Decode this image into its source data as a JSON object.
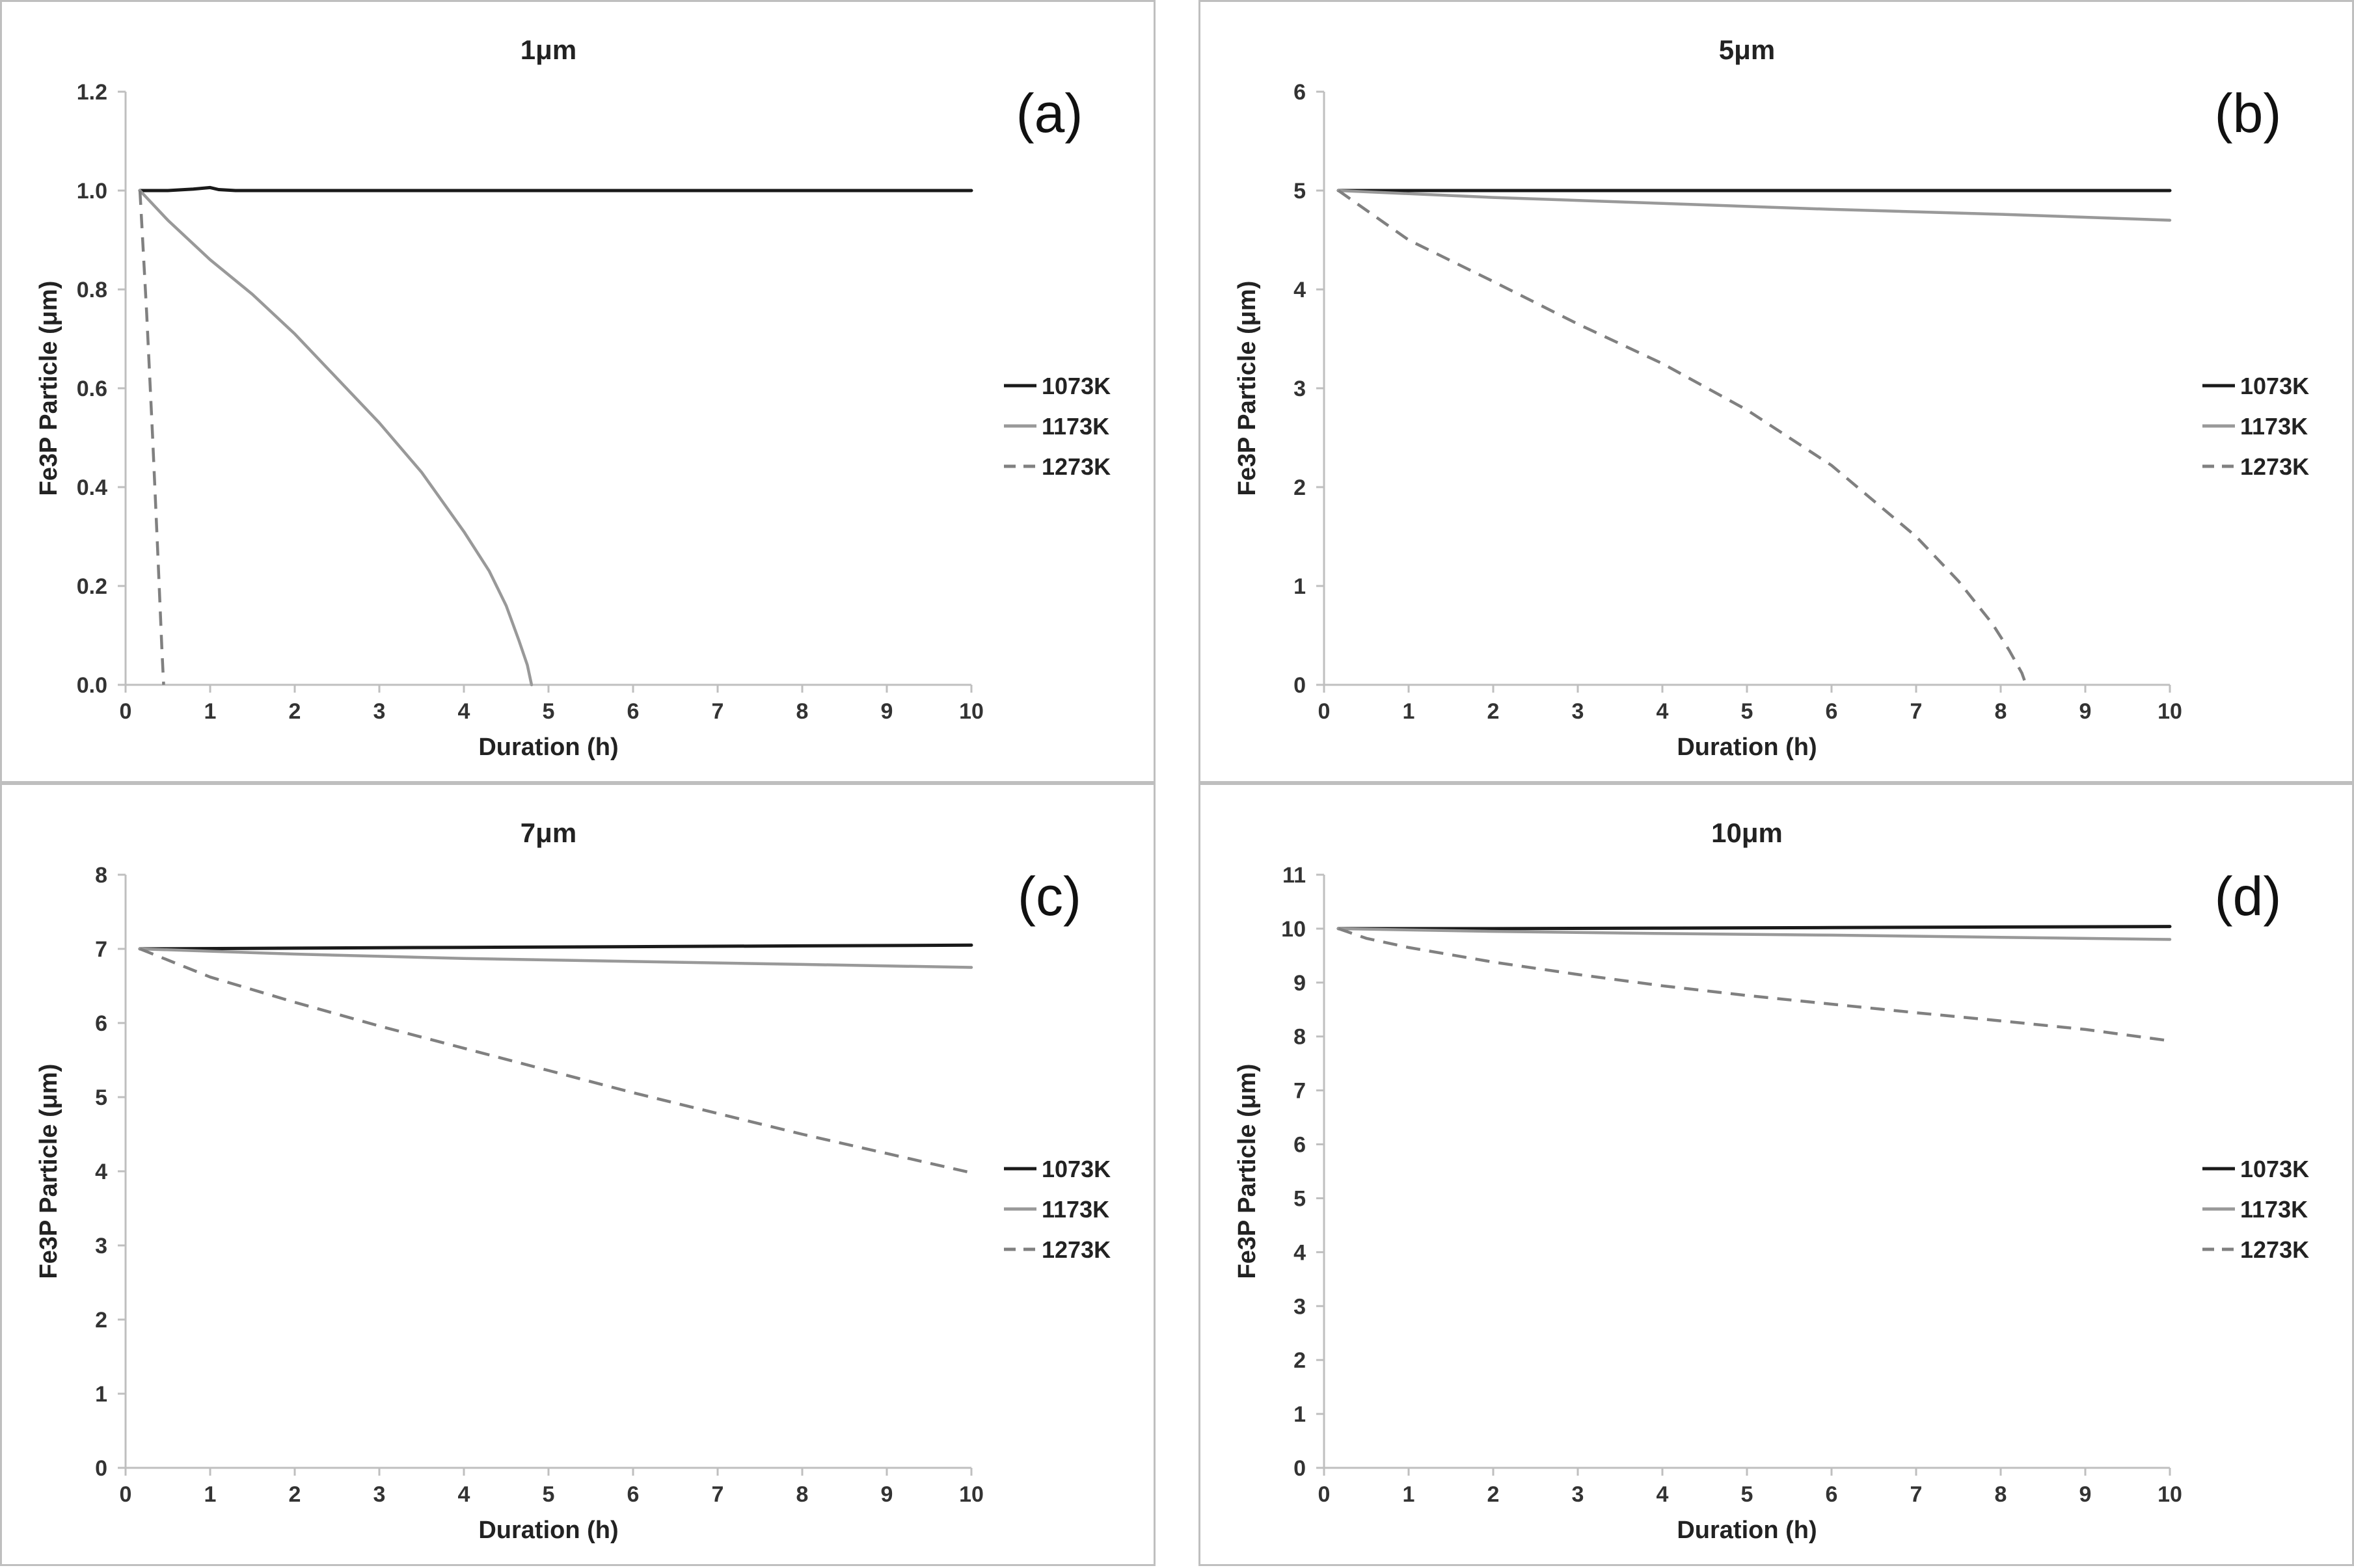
{
  "figure": {
    "legend_position": "right"
  },
  "chart_data": [
    {
      "type": "line",
      "panel": "a",
      "letter": "(a)",
      "title": "1μm",
      "xlabel": "Duration (h)",
      "ylabel": "Fe3P Particle (μm)",
      "xlim": [
        0,
        10
      ],
      "ylim": [
        0,
        1.2
      ],
      "xticks": [
        "0",
        "1",
        "2",
        "3",
        "4",
        "5",
        "6",
        "7",
        "8",
        "9",
        "10"
      ],
      "yticks": [
        "0.0",
        "0.2",
        "0.4",
        "0.6",
        "0.8",
        "1.0",
        "1.2"
      ],
      "series": [
        {
          "name": "1073K",
          "color": "#1a1a1a",
          "dash": "solid",
          "x": [
            0.17,
            0.5,
            0.8,
            1.0,
            1.1,
            1.3,
            2,
            4,
            6,
            8,
            10
          ],
          "y": [
            1.0,
            1.0,
            1.003,
            1.006,
            1.002,
            1.0,
            1.0,
            1.0,
            1.0,
            1.0,
            1.0
          ]
        },
        {
          "name": "1173K",
          "color": "#999999",
          "dash": "solid",
          "x": [
            0.17,
            0.5,
            1,
            1.5,
            2,
            2.5,
            3,
            3.5,
            4,
            4.3,
            4.5,
            4.65,
            4.75,
            4.8
          ],
          "y": [
            1.0,
            0.94,
            0.86,
            0.79,
            0.71,
            0.62,
            0.53,
            0.43,
            0.31,
            0.23,
            0.16,
            0.09,
            0.04,
            0.0
          ]
        },
        {
          "name": "1273K",
          "color": "#808080",
          "dash": "dashed",
          "x": [
            0.17,
            0.25,
            0.32,
            0.38,
            0.43,
            0.45
          ],
          "y": [
            1.0,
            0.75,
            0.5,
            0.27,
            0.07,
            0.0
          ]
        }
      ]
    },
    {
      "type": "line",
      "panel": "b",
      "letter": "(b)",
      "title": "5μm",
      "xlabel": "Duration (h)",
      "ylabel": "Fe3P Particle (μm)",
      "xlim": [
        0,
        10
      ],
      "ylim": [
        0,
        6
      ],
      "xticks": [
        "0",
        "1",
        "2",
        "3",
        "4",
        "5",
        "6",
        "7",
        "8",
        "9",
        "10"
      ],
      "yticks": [
        "0",
        "1",
        "2",
        "3",
        "4",
        "5",
        "6"
      ],
      "series": [
        {
          "name": "1073K",
          "color": "#1a1a1a",
          "dash": "solid",
          "x": [
            0.17,
            10
          ],
          "y": [
            5.0,
            5.0
          ]
        },
        {
          "name": "1173K",
          "color": "#999999",
          "dash": "solid",
          "x": [
            0.17,
            2,
            4,
            6,
            8,
            10
          ],
          "y": [
            5.0,
            4.93,
            4.87,
            4.81,
            4.76,
            4.7
          ]
        },
        {
          "name": "1273K",
          "color": "#808080",
          "dash": "dashed",
          "x": [
            0.17,
            1,
            2,
            3,
            4,
            5,
            6,
            7,
            7.5,
            7.9,
            8.1,
            8.25,
            8.3
          ],
          "y": [
            5.0,
            4.5,
            4.08,
            3.65,
            3.25,
            2.78,
            2.22,
            1.5,
            1.05,
            0.62,
            0.35,
            0.12,
            0.0
          ]
        }
      ]
    },
    {
      "type": "line",
      "panel": "c",
      "letter": "(c)",
      "title": "7μm",
      "xlabel": "Duration (h)",
      "ylabel": "Fe3P Particle (μm)",
      "xlim": [
        0,
        10
      ],
      "ylim": [
        0,
        8
      ],
      "xticks": [
        "0",
        "1",
        "2",
        "3",
        "4",
        "5",
        "6",
        "7",
        "8",
        "9",
        "10"
      ],
      "yticks": [
        "0",
        "1",
        "2",
        "3",
        "4",
        "5",
        "6",
        "7",
        "8"
      ],
      "series": [
        {
          "name": "1073K",
          "color": "#1a1a1a",
          "dash": "solid",
          "x": [
            0.17,
            2,
            4,
            6,
            8,
            10
          ],
          "y": [
            7.0,
            7.01,
            7.02,
            7.03,
            7.04,
            7.05
          ]
        },
        {
          "name": "1173K",
          "color": "#999999",
          "dash": "solid",
          "x": [
            0.17,
            2,
            4,
            6,
            8,
            10
          ],
          "y": [
            7.0,
            6.93,
            6.87,
            6.83,
            6.79,
            6.75
          ]
        },
        {
          "name": "1273K",
          "color": "#808080",
          "dash": "dashed",
          "x": [
            0.17,
            1,
            2,
            3,
            4,
            5,
            6,
            7,
            8,
            9,
            10
          ],
          "y": [
            7.0,
            6.62,
            6.28,
            5.96,
            5.66,
            5.36,
            5.06,
            4.78,
            4.5,
            4.24,
            3.98
          ]
        }
      ]
    },
    {
      "type": "line",
      "panel": "d",
      "letter": "(d)",
      "title": "10μm",
      "xlabel": "Duration (h)",
      "ylabel": "Fe3P Particle (μm)",
      "xlim": [
        0,
        10
      ],
      "ylim": [
        0,
        11
      ],
      "xticks": [
        "0",
        "1",
        "2",
        "3",
        "4",
        "5",
        "6",
        "7",
        "8",
        "9",
        "10"
      ],
      "yticks": [
        "0",
        "1",
        "2",
        "3",
        "4",
        "5",
        "6",
        "7",
        "8",
        "9",
        "10",
        "11"
      ],
      "series": [
        {
          "name": "1073K",
          "color": "#1a1a1a",
          "dash": "solid",
          "x": [
            0.17,
            2,
            4,
            6,
            8,
            10
          ],
          "y": [
            10.0,
            10.0,
            10.01,
            10.02,
            10.03,
            10.04
          ]
        },
        {
          "name": "1173K",
          "color": "#999999",
          "dash": "solid",
          "x": [
            0.17,
            2,
            4,
            6,
            8,
            10
          ],
          "y": [
            10.0,
            9.95,
            9.91,
            9.88,
            9.84,
            9.8
          ]
        },
        {
          "name": "1273K",
          "color": "#808080",
          "dash": "dashed",
          "x": [
            0.17,
            0.5,
            1,
            2,
            3,
            4,
            5,
            6,
            7,
            8,
            9,
            10
          ],
          "y": [
            10.0,
            9.82,
            9.65,
            9.38,
            9.15,
            8.94,
            8.76,
            8.6,
            8.44,
            8.29,
            8.13,
            7.92
          ]
        }
      ]
    }
  ]
}
